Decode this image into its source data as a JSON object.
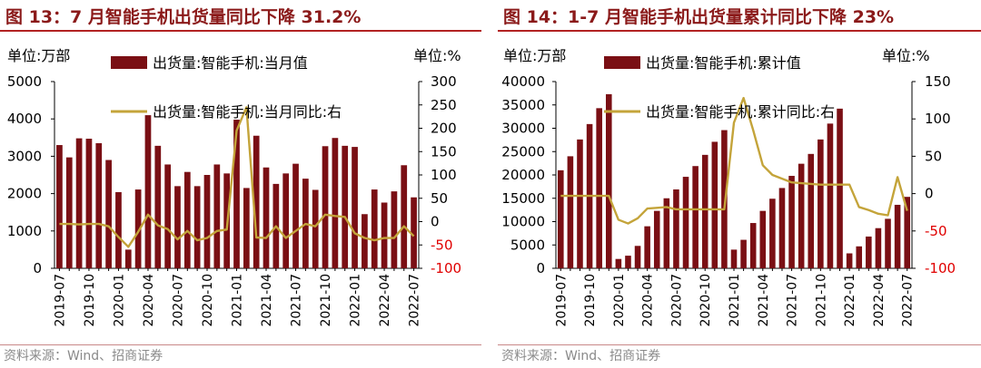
{
  "colors": {
    "bar": "#7a0f14",
    "line": "#c4a43a",
    "title": "#8b1a1a",
    "rule": "#b22222",
    "right_axis_neg": "#e00000"
  },
  "chart_data": [
    {
      "type": "bar+line",
      "title": "图 13：7 月智能手机出货量同比下降 31.2%",
      "left_unit": "单位:万部",
      "right_unit": "单位:%",
      "series": [
        {
          "name": "出货量:智能手机:当月值",
          "kind": "bar",
          "axis": "left",
          "values": [
            3300,
            2970,
            3480,
            3470,
            3350,
            2900,
            2040,
            500,
            2110,
            4100,
            3280,
            2780,
            2200,
            2580,
            2200,
            2500,
            2780,
            2540,
            3980,
            2150,
            3550,
            2700,
            2260,
            2540,
            2800,
            2400,
            2100,
            3270,
            3490,
            3280,
            3250,
            1450,
            2110,
            1760,
            2060,
            2760,
            1900
          ]
        },
        {
          "name": "出货量:智能手机:当月同比:右",
          "kind": "line",
          "axis": "right",
          "values": [
            -5,
            -5,
            -6,
            -5,
            -5,
            -10,
            -33,
            -54,
            -22,
            15,
            -8,
            -16,
            -38,
            -20,
            -40,
            -35,
            -20,
            -17,
            195,
            245,
            -34,
            -35,
            -10,
            -35,
            -20,
            -5,
            -10,
            15,
            12,
            10,
            -25,
            -35,
            -40,
            -35,
            -35,
            -10,
            -31.2
          ]
        }
      ],
      "categories": [
        "2019-07",
        "2019-08",
        "2019-09",
        "2019-10",
        "2019-11",
        "2019-12",
        "2020-01",
        "2020-02",
        "2020-03",
        "2020-04",
        "2020-05",
        "2020-06",
        "2020-07",
        "2020-08",
        "2020-09",
        "2020-10",
        "2020-11",
        "2020-12",
        "2021-01",
        "2021-02",
        "2021-03",
        "2021-04",
        "2021-05",
        "2021-06",
        "2021-07",
        "2021-08",
        "2021-09",
        "2021-10",
        "2021-11",
        "2021-12",
        "2022-01",
        "2022-02",
        "2022-03",
        "2022-04",
        "2022-05",
        "2022-06",
        "2022-07"
      ],
      "x_tick_labels": [
        "2019-07",
        "2019-10",
        "2020-01",
        "2020-04",
        "2020-07",
        "2020-10",
        "2021-01",
        "2021-04",
        "2021-07",
        "2021-10",
        "2022-01",
        "2022-04",
        "2022-07"
      ],
      "ylim_left": [
        0,
        5000
      ],
      "yticks_left": [
        "0",
        "1000",
        "2000",
        "3000",
        "4000",
        "5000"
      ],
      "ylim_right": [
        -100,
        300
      ],
      "yticks_right": [
        "-100",
        "-50",
        "0",
        "50",
        "100",
        "150",
        "200",
        "250",
        "300"
      ],
      "source": "资料来源：Wind、招商证券"
    },
    {
      "type": "bar+line",
      "title": "图 14：1-7 月智能手机出货量累计同比下降 23%",
      "left_unit": "单位:万部",
      "right_unit": "单位:%",
      "series": [
        {
          "name": "出货量:智能手机:累计值",
          "kind": "bar",
          "axis": "left",
          "values": [
            21000,
            24000,
            27600,
            30900,
            34300,
            37300,
            2000,
            2700,
            4800,
            9000,
            12300,
            15000,
            16900,
            19600,
            21900,
            24300,
            27100,
            29600,
            4000,
            6100,
            9700,
            12300,
            14900,
            17200,
            19800,
            22400,
            24500,
            27600,
            31000,
            34200,
            3200,
            4700,
            6800,
            8600,
            10600,
            13600,
            15300
          ]
        },
        {
          "name": "出货量:智能手机:累计同比:右",
          "kind": "line",
          "axis": "right",
          "values": [
            -3,
            -3,
            -3,
            -3,
            -3,
            -3,
            -35,
            -40,
            -33,
            -20,
            -19,
            -18,
            -21,
            -21,
            -21,
            -21,
            -21,
            -21,
            95,
            128,
            85,
            38,
            25,
            20,
            15,
            14,
            13,
            12,
            12,
            12,
            12,
            -18,
            -22,
            -27,
            -29,
            22,
            -23
          ]
        }
      ],
      "categories": [
        "2019-07",
        "2019-08",
        "2019-09",
        "2019-10",
        "2019-11",
        "2019-12",
        "2020-01",
        "2020-02",
        "2020-03",
        "2020-04",
        "2020-05",
        "2020-06",
        "2020-07",
        "2020-08",
        "2020-09",
        "2020-10",
        "2020-11",
        "2020-12",
        "2021-01",
        "2021-02",
        "2021-03",
        "2021-04",
        "2021-05",
        "2021-06",
        "2021-07",
        "2021-08",
        "2021-09",
        "2021-10",
        "2021-11",
        "2021-12",
        "2022-01",
        "2022-02",
        "2022-03",
        "2022-04",
        "2022-05",
        "2022-06",
        "2022-07"
      ],
      "x_tick_labels": [
        "2019-07",
        "2019-10",
        "2020-01",
        "2020-04",
        "2020-07",
        "2020-10",
        "2021-01",
        "2021-04",
        "2021-07",
        "2021-10",
        "2022-01",
        "2022-04",
        "2022-07"
      ],
      "ylim_left": [
        0,
        40000
      ],
      "yticks_left": [
        "0",
        "5000",
        "10000",
        "15000",
        "20000",
        "25000",
        "30000",
        "35000",
        "40000"
      ],
      "ylim_right": [
        -100,
        150
      ],
      "yticks_right": [
        "-100",
        "-50",
        "0",
        "50",
        "100",
        "150"
      ],
      "source": "资料来源：Wind、招商证券"
    }
  ]
}
